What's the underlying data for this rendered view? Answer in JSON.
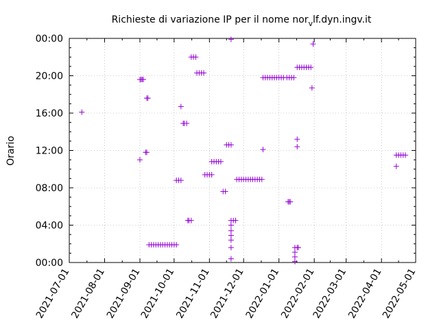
{
  "chart_data": {
    "type": "scatter",
    "title": "Richieste di variazione IP per il nome nor",
    "title_sub": "v",
    "title_tail": "lf.dyn.ingv.it",
    "xlabel": "",
    "ylabel": "Orario",
    "x_ticks": [
      "2021-07-01",
      "2021-08-01",
      "2021-09-01",
      "2021-10-01",
      "2021-11-01",
      "2021-12-01",
      "2022-01-01",
      "2022-02-01",
      "2022-03-01",
      "2022-04-01",
      "2022-05-01"
    ],
    "y_ticks": [
      "00:00",
      "04:00",
      "08:00",
      "12:00",
      "16:00",
      "20:00",
      "00:00"
    ],
    "xlim": [
      "2021-07-01",
      "2022-05-01"
    ],
    "ylim_hours": [
      0,
      24
    ],
    "marker": "+",
    "color": "#9400d3",
    "points": [
      [
        "2021-07-12",
        16.1
      ],
      [
        "2021-09-01",
        11.0
      ],
      [
        "2021-09-01",
        19.6
      ],
      [
        "2021-09-02",
        19.6
      ],
      [
        "2021-09-03",
        19.6
      ],
      [
        "2021-09-04",
        19.6
      ],
      [
        "2021-09-06",
        11.8
      ],
      [
        "2021-09-07",
        11.8
      ],
      [
        "2021-09-07",
        17.6
      ],
      [
        "2021-09-08",
        17.6
      ],
      [
        "2021-09-09",
        1.9
      ],
      [
        "2021-09-11",
        1.9
      ],
      [
        "2021-09-13",
        1.9
      ],
      [
        "2021-09-15",
        1.9
      ],
      [
        "2021-09-17",
        1.9
      ],
      [
        "2021-09-19",
        1.9
      ],
      [
        "2021-09-21",
        1.9
      ],
      [
        "2021-09-23",
        1.9
      ],
      [
        "2021-09-25",
        1.9
      ],
      [
        "2021-09-27",
        1.9
      ],
      [
        "2021-09-29",
        1.9
      ],
      [
        "2021-10-01",
        1.9
      ],
      [
        "2021-10-03",
        1.9
      ],
      [
        "2021-10-03",
        8.8
      ],
      [
        "2021-10-05",
        8.8
      ],
      [
        "2021-10-07",
        8.8
      ],
      [
        "2021-10-07",
        16.7
      ],
      [
        "2021-10-09",
        14.9
      ],
      [
        "2021-10-10",
        14.9
      ],
      [
        "2021-10-12",
        14.9
      ],
      [
        "2021-10-13",
        4.5
      ],
      [
        "2021-10-14",
        4.5
      ],
      [
        "2021-10-16",
        4.5
      ],
      [
        "2021-10-16",
        22.0
      ],
      [
        "2021-10-18",
        22.0
      ],
      [
        "2021-10-20",
        22.0
      ],
      [
        "2021-10-21",
        20.3
      ],
      [
        "2021-10-23",
        20.3
      ],
      [
        "2021-10-25",
        20.3
      ],
      [
        "2021-10-27",
        20.3
      ],
      [
        "2021-10-28",
        9.4
      ],
      [
        "2021-10-30",
        9.4
      ],
      [
        "2021-11-01",
        9.4
      ],
      [
        "2021-11-03",
        9.4
      ],
      [
        "2021-11-03",
        10.8
      ],
      [
        "2021-11-05",
        10.8
      ],
      [
        "2021-11-07",
        10.8
      ],
      [
        "2021-11-09",
        10.8
      ],
      [
        "2021-11-11",
        10.8
      ],
      [
        "2021-11-13",
        7.6
      ],
      [
        "2021-11-15",
        7.6
      ],
      [
        "2021-11-16",
        12.6
      ],
      [
        "2021-11-18",
        12.6
      ],
      [
        "2021-11-20",
        12.6
      ],
      [
        "2021-11-20",
        23.9
      ],
      [
        "2021-11-20",
        0.4
      ],
      [
        "2021-11-20",
        1.6
      ],
      [
        "2021-11-20",
        2.4
      ],
      [
        "2021-11-20",
        2.9
      ],
      [
        "2021-11-20",
        3.4
      ],
      [
        "2021-11-20",
        4.0
      ],
      [
        "2021-11-20",
        4.5
      ],
      [
        "2021-11-22",
        4.5
      ],
      [
        "2021-11-24",
        4.5
      ],
      [
        "2021-11-25",
        8.9
      ],
      [
        "2021-11-27",
        8.9
      ],
      [
        "2021-11-29",
        8.9
      ],
      [
        "2021-12-01",
        8.9
      ],
      [
        "2021-12-03",
        8.9
      ],
      [
        "2021-12-05",
        8.9
      ],
      [
        "2021-12-07",
        8.9
      ],
      [
        "2021-12-09",
        8.9
      ],
      [
        "2021-12-11",
        8.9
      ],
      [
        "2021-12-13",
        8.9
      ],
      [
        "2021-12-15",
        8.9
      ],
      [
        "2021-12-17",
        8.9
      ],
      [
        "2021-12-18",
        12.1
      ],
      [
        "2021-12-18",
        19.8
      ],
      [
        "2021-12-20",
        19.8
      ],
      [
        "2021-12-22",
        19.8
      ],
      [
        "2021-12-24",
        19.8
      ],
      [
        "2021-12-26",
        19.8
      ],
      [
        "2021-12-28",
        19.8
      ],
      [
        "2021-12-30",
        19.8
      ],
      [
        "2022-01-01",
        19.8
      ],
      [
        "2022-01-03",
        19.8
      ],
      [
        "2022-01-05",
        19.8
      ],
      [
        "2022-01-08",
        19.8
      ],
      [
        "2022-01-10",
        19.8
      ],
      [
        "2022-01-12",
        19.8
      ],
      [
        "2022-01-14",
        19.8
      ],
      [
        "2022-01-09",
        6.5
      ],
      [
        "2022-01-10",
        6.5
      ],
      [
        "2022-01-11",
        6.5
      ],
      [
        "2022-01-15",
        0.1
      ],
      [
        "2022-01-15",
        0.6
      ],
      [
        "2022-01-15",
        1.1
      ],
      [
        "2022-01-15",
        1.6
      ],
      [
        "2022-01-17",
        1.6
      ],
      [
        "2022-01-18",
        1.6
      ],
      [
        "2022-01-17",
        12.4
      ],
      [
        "2022-01-17",
        13.2
      ],
      [
        "2022-01-17",
        20.9
      ],
      [
        "2022-01-19",
        20.9
      ],
      [
        "2022-01-21",
        20.9
      ],
      [
        "2022-01-23",
        20.9
      ],
      [
        "2022-01-25",
        20.9
      ],
      [
        "2022-01-27",
        20.9
      ],
      [
        "2022-01-29",
        20.9
      ],
      [
        "2022-01-30",
        18.7
      ],
      [
        "2022-01-31",
        23.4
      ],
      [
        "2022-04-14",
        10.3
      ],
      [
        "2022-04-14",
        11.5
      ],
      [
        "2022-04-16",
        11.5
      ],
      [
        "2022-04-18",
        11.5
      ],
      [
        "2022-04-20",
        11.5
      ],
      [
        "2022-04-22",
        11.5
      ]
    ]
  }
}
